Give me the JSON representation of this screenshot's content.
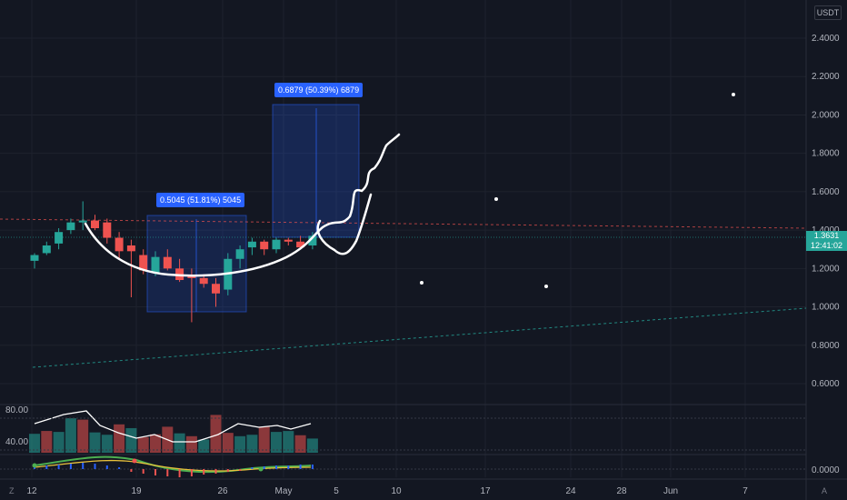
{
  "colors": {
    "bg": "#131722",
    "up": "#26a69a",
    "down": "#ef5350",
    "grid": "#1e222d",
    "accent": "#2962ff"
  },
  "axis": {
    "unit": "USDT",
    "price_ticks": [
      "2.4000",
      "2.2000",
      "2.0000",
      "1.8000",
      "1.6000",
      "1.4000",
      "1.2000",
      "1.0000",
      "0.8000",
      "0.6000"
    ],
    "osc_ticks": [
      "80.00",
      "40.00"
    ],
    "macd_tick": "0.0000",
    "date_ticks": [
      "12",
      "19",
      "26",
      "May",
      "5",
      "10",
      "17",
      "24",
      "28",
      "Jun",
      "7"
    ]
  },
  "last_price": {
    "value": "1.3631",
    "countdown": "12:41:02"
  },
  "measurements": [
    {
      "label": "0.5045 (51.81%) 5045"
    },
    {
      "label": "0.6879 (50.39%) 6879"
    }
  ],
  "corner_labels": {
    "left": "Z",
    "right": "A"
  },
  "chart_data": {
    "type": "candlestick",
    "y_range": [
      0.5,
      2.6
    ],
    "candles": [
      {
        "o": 1.24,
        "h": 1.28,
        "l": 1.2,
        "c": 1.27
      },
      {
        "o": 1.28,
        "h": 1.34,
        "l": 1.27,
        "c": 1.32
      },
      {
        "o": 1.33,
        "h": 1.41,
        "l": 1.3,
        "c": 1.39
      },
      {
        "o": 1.4,
        "h": 1.46,
        "l": 1.38,
        "c": 1.44
      },
      {
        "o": 1.44,
        "h": 1.55,
        "l": 1.4,
        "c": 1.45
      },
      {
        "o": 1.45,
        "h": 1.48,
        "l": 1.4,
        "c": 1.41
      },
      {
        "o": 1.44,
        "h": 1.46,
        "l": 1.33,
        "c": 1.36
      },
      {
        "o": 1.36,
        "h": 1.39,
        "l": 1.25,
        "c": 1.29
      },
      {
        "o": 1.32,
        "h": 1.35,
        "l": 1.05,
        "c": 1.29
      },
      {
        "o": 1.27,
        "h": 1.3,
        "l": 1.17,
        "c": 1.19
      },
      {
        "o": 1.18,
        "h": 1.29,
        "l": 1.16,
        "c": 1.26
      },
      {
        "o": 1.26,
        "h": 1.3,
        "l": 1.19,
        "c": 1.2
      },
      {
        "o": 1.2,
        "h": 1.25,
        "l": 1.13,
        "c": 1.14
      },
      {
        "o": 1.16,
        "h": 1.2,
        "l": 0.92,
        "c": 1.15
      },
      {
        "o": 1.15,
        "h": 1.17,
        "l": 1.1,
        "c": 1.12
      },
      {
        "o": 1.12,
        "h": 1.15,
        "l": 1.0,
        "c": 1.07
      },
      {
        "o": 1.09,
        "h": 1.28,
        "l": 1.06,
        "c": 1.25
      },
      {
        "o": 1.25,
        "h": 1.32,
        "l": 1.2,
        "c": 1.3
      },
      {
        "o": 1.31,
        "h": 1.36,
        "l": 1.27,
        "c": 1.34
      },
      {
        "o": 1.34,
        "h": 1.35,
        "l": 1.27,
        "c": 1.3
      },
      {
        "o": 1.3,
        "h": 1.36,
        "l": 1.28,
        "c": 1.35
      },
      {
        "o": 1.35,
        "h": 1.36,
        "l": 1.32,
        "c": 1.34
      },
      {
        "o": 1.34,
        "h": 1.37,
        "l": 1.3,
        "c": 1.31
      },
      {
        "o": 1.32,
        "h": 1.39,
        "l": 1.3,
        "c": 1.37
      }
    ],
    "dots": [
      [
        2.1
      ],
      [
        1.55
      ],
      [
        1.12
      ],
      [
        1.1
      ]
    ],
    "oscillator": {
      "levels": [
        "80.00",
        "40.00"
      ]
    },
    "grid": true
  }
}
